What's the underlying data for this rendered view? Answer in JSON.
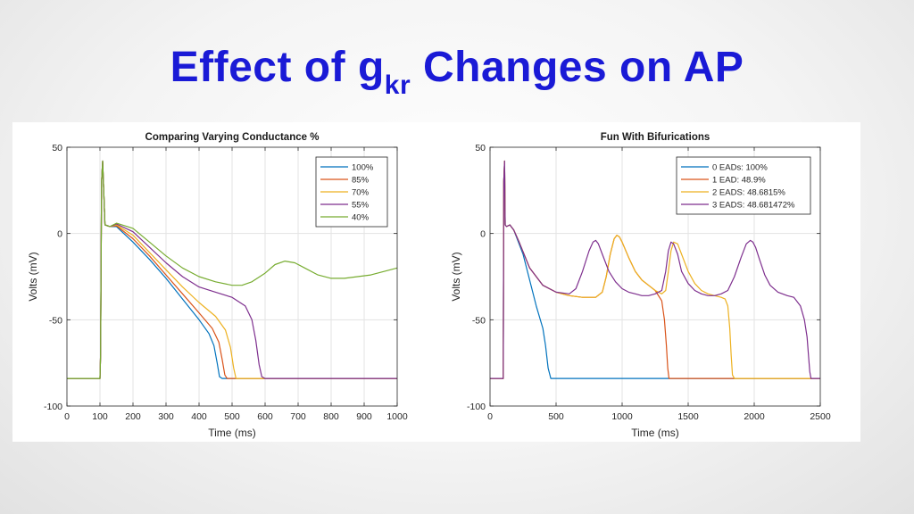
{
  "slide": {
    "title_main": "Effect of g",
    "title_sub": "kr",
    "title_rest": " Changes on AP"
  },
  "chart_data": [
    {
      "type": "line",
      "title": "Comparing Varying Conductance %",
      "xlabel": "Time (ms)",
      "ylabel": "Volts (mV)",
      "xlim": [
        0,
        1000
      ],
      "ylim": [
        -100,
        50
      ],
      "xticks": [
        0,
        100,
        200,
        300,
        400,
        500,
        600,
        700,
        800,
        900,
        1000
      ],
      "yticks": [
        -100,
        -50,
        0,
        50
      ],
      "grid": true,
      "legend_position": "top-right",
      "series": [
        {
          "name": "100%",
          "color": "#0072bd",
          "x": [
            0,
            100,
            102,
            105,
            108,
            115,
            130,
            150,
            200,
            250,
            300,
            350,
            400,
            430,
            445,
            455,
            462,
            470,
            480,
            1000
          ],
          "y": [
            -84,
            -84,
            -70,
            30,
            42,
            5,
            4,
            4,
            -5,
            -15,
            -26,
            -38,
            -50,
            -58,
            -65,
            -75,
            -83,
            -84,
            -84,
            -84
          ]
        },
        {
          "name": "85%",
          "color": "#d95319",
          "x": [
            0,
            100,
            102,
            105,
            108,
            115,
            130,
            150,
            200,
            250,
            300,
            350,
            400,
            440,
            460,
            470,
            478,
            485,
            495,
            1000
          ],
          "y": [
            -84,
            -84,
            -70,
            30,
            42,
            5,
            4,
            4.5,
            -3,
            -13,
            -24,
            -35,
            -46,
            -55,
            -63,
            -73,
            -82,
            -84,
            -84,
            -84
          ]
        },
        {
          "name": "70%",
          "color": "#edb120",
          "x": [
            0,
            100,
            102,
            105,
            108,
            115,
            130,
            150,
            200,
            250,
            300,
            350,
            400,
            450,
            480,
            495,
            505,
            512,
            520,
            1000
          ],
          "y": [
            -84,
            -84,
            -70,
            30,
            42,
            5,
            4,
            5,
            -1,
            -11,
            -21,
            -31,
            -40,
            -48,
            -56,
            -66,
            -78,
            -84,
            -84,
            -84
          ]
        },
        {
          "name": "55%",
          "color": "#7e2f8e",
          "x": [
            0,
            100,
            102,
            105,
            108,
            115,
            130,
            150,
            200,
            250,
            300,
            350,
            400,
            450,
            500,
            540,
            560,
            572,
            582,
            590,
            600,
            1000
          ],
          "y": [
            -84,
            -84,
            -70,
            30,
            42,
            5,
            4,
            5.5,
            1,
            -8,
            -17,
            -25,
            -31,
            -34,
            -37,
            -42,
            -50,
            -62,
            -76,
            -83,
            -84,
            -84
          ]
        },
        {
          "name": "40%",
          "color": "#77ac30",
          "x": [
            0,
            100,
            102,
            105,
            108,
            115,
            130,
            150,
            200,
            250,
            300,
            350,
            400,
            450,
            500,
            530,
            560,
            600,
            630,
            660,
            690,
            720,
            760,
            800,
            840,
            880,
            920,
            960,
            1000
          ],
          "y": [
            -84,
            -84,
            -70,
            30,
            42,
            5,
            4,
            6,
            3,
            -5,
            -13,
            -20,
            -25,
            -28,
            -30,
            -30,
            -28,
            -23,
            -18,
            -16,
            -17,
            -20,
            -24,
            -26,
            -26,
            -25,
            -24,
            -22,
            -20
          ]
        }
      ]
    },
    {
      "type": "line",
      "title": "Fun With Bifurications",
      "xlabel": "Time (ms)",
      "ylabel": "Volts (mV)",
      "xlim": [
        0,
        2500
      ],
      "ylim": [
        -100,
        50
      ],
      "xticks": [
        0,
        500,
        1000,
        1500,
        2000,
        2500
      ],
      "yticks": [
        -100,
        -50,
        0,
        50
      ],
      "grid": true,
      "legend_position": "top-right",
      "series": [
        {
          "name": "0 EADs: 100%",
          "color": "#0072bd",
          "x": [
            0,
            100,
            104,
            110,
            115,
            125,
            150,
            180,
            250,
            300,
            350,
            400,
            420,
            440,
            460,
            480,
            2500
          ],
          "y": [
            -84,
            -84,
            30,
            42,
            5,
            4,
            5,
            2,
            -12,
            -27,
            -42,
            -55,
            -65,
            -78,
            -84,
            -84,
            -84
          ]
        },
        {
          "name": "1 EAD: 48.9%",
          "color": "#d95319",
          "x": [
            0,
            100,
            104,
            110,
            115,
            125,
            150,
            180,
            220,
            300,
            400,
            500,
            600,
            700,
            800,
            850,
            880,
            910,
            940,
            960,
            980,
            1000,
            1050,
            1100,
            1150,
            1200,
            1250,
            1300,
            1320,
            1335,
            1345,
            1355,
            1365,
            2500
          ],
          "y": [
            -84,
            -84,
            30,
            42,
            5,
            4,
            5,
            2,
            -5,
            -20,
            -30,
            -34,
            -36,
            -37,
            -37,
            -34,
            -25,
            -12,
            -3,
            -1,
            -2,
            -5,
            -14,
            -22,
            -27,
            -30,
            -33,
            -39,
            -50,
            -65,
            -78,
            -84,
            -84,
            -84
          ]
        },
        {
          "name": "2 EADS: 48.6815%",
          "color": "#edb120",
          "x": [
            0,
            100,
            104,
            110,
            115,
            125,
            150,
            180,
            220,
            300,
            400,
            500,
            600,
            700,
            800,
            850,
            880,
            910,
            940,
            960,
            980,
            1000,
            1050,
            1100,
            1150,
            1200,
            1250,
            1300,
            1330,
            1350,
            1370,
            1390,
            1420,
            1450,
            1500,
            1550,
            1600,
            1650,
            1700,
            1750,
            1780,
            1800,
            1815,
            1825,
            1835,
            1850,
            2500
          ],
          "y": [
            -84,
            -84,
            30,
            42,
            5,
            4,
            5,
            2,
            -5,
            -20,
            -30,
            -34,
            -36,
            -37,
            -37,
            -34,
            -25,
            -12,
            -3,
            -1,
            -2,
            -5,
            -14,
            -22,
            -27,
            -30,
            -33,
            -35,
            -33,
            -22,
            -10,
            -5,
            -6,
            -12,
            -22,
            -29,
            -33,
            -35,
            -36,
            -37,
            -38,
            -42,
            -55,
            -70,
            -82,
            -84,
            -84
          ]
        },
        {
          "name": "3 EADS: 48.681472%",
          "color": "#7e2f8e",
          "x": [
            0,
            100,
            104,
            110,
            115,
            125,
            150,
            180,
            220,
            300,
            400,
            500,
            600,
            650,
            700,
            750,
            780,
            800,
            820,
            850,
            900,
            950,
            1000,
            1050,
            1100,
            1150,
            1200,
            1250,
            1300,
            1330,
            1350,
            1370,
            1390,
            1420,
            1450,
            1500,
            1550,
            1600,
            1650,
            1700,
            1750,
            1800,
            1850,
            1900,
            1940,
            1970,
            1990,
            2010,
            2040,
            2080,
            2120,
            2180,
            2250,
            2300,
            2350,
            2380,
            2400,
            2410,
            2420,
            2430,
            2440,
            2450,
            2500
          ],
          "y": [
            -84,
            -84,
            30,
            42,
            5,
            4,
            5,
            2,
            -5,
            -20,
            -30,
            -34,
            -35,
            -32,
            -22,
            -10,
            -5,
            -4,
            -6,
            -12,
            -22,
            -28,
            -32,
            -34,
            -35,
            -36,
            -36,
            -35,
            -33,
            -22,
            -10,
            -5,
            -6,
            -12,
            -22,
            -29,
            -33,
            -35,
            -36,
            -36,
            -35,
            -33,
            -25,
            -14,
            -6,
            -4,
            -5,
            -8,
            -15,
            -24,
            -30,
            -34,
            -36,
            -37,
            -42,
            -50,
            -60,
            -70,
            -80,
            -84,
            -84,
            -84,
            -84
          ]
        }
      ]
    }
  ]
}
